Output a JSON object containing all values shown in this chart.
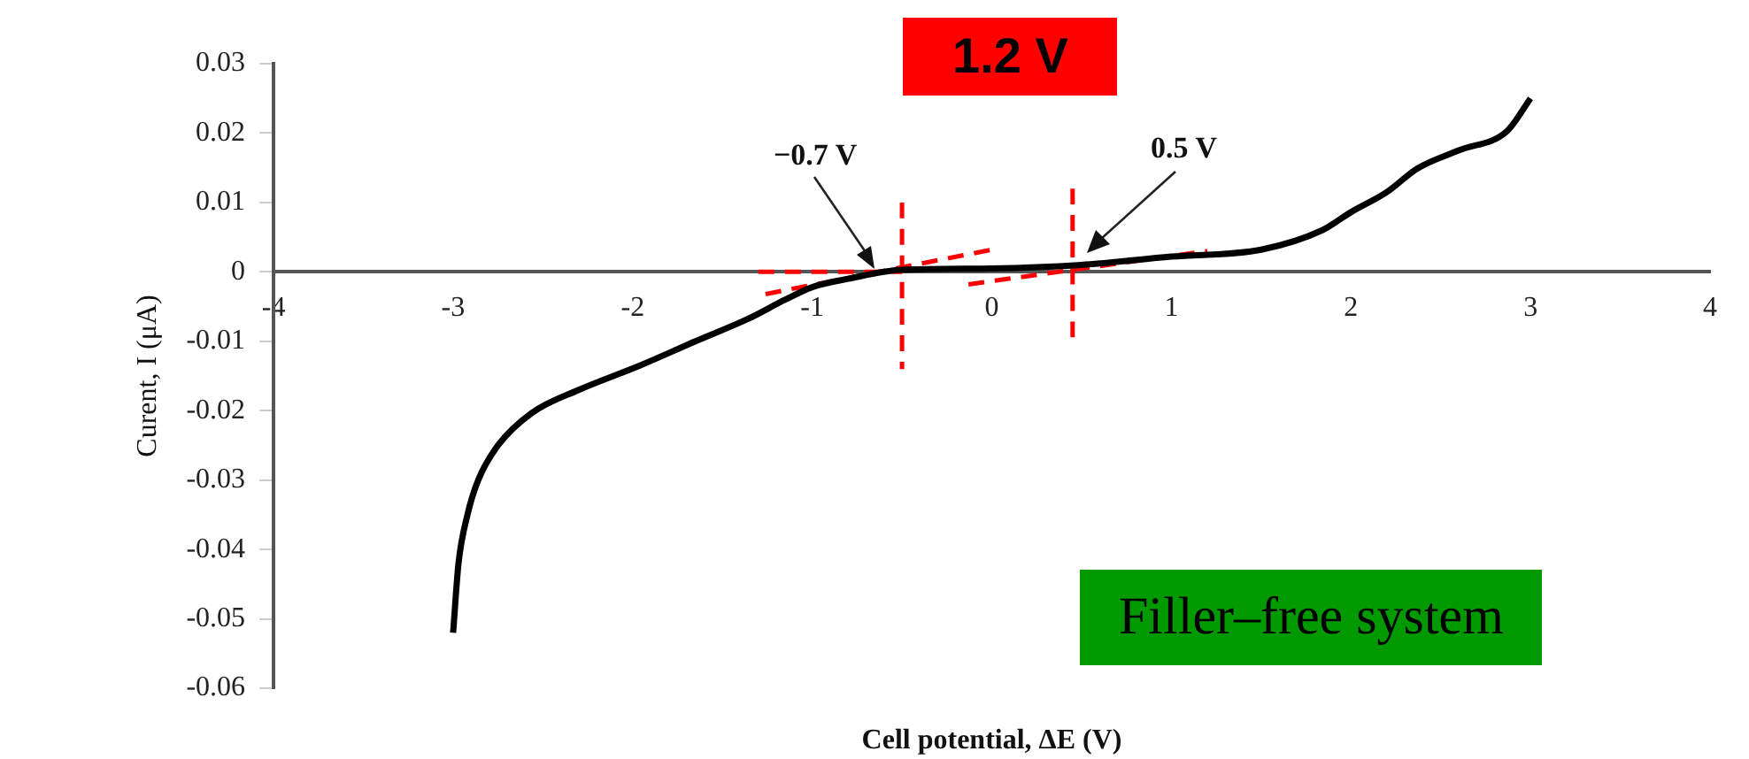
{
  "chart_data": {
    "type": "line",
    "xlabel": "Cell potential, ΔE (V)",
    "ylabel": "Curent, I (μA)",
    "xlim": [
      -4,
      4
    ],
    "xticks": [
      -4,
      -3,
      -2,
      -1,
      0,
      1,
      2,
      3,
      4
    ],
    "ylim": [
      -0.06,
      0.03
    ],
    "yticks": [
      -0.06,
      -0.05,
      -0.04,
      -0.03,
      -0.02,
      -0.01,
      0,
      0.01,
      0.02,
      0.03
    ],
    "grid": false,
    "legend": false,
    "marker": "none",
    "series": [
      {
        "color": "#000000",
        "line_style": "solid",
        "x": [
          -3,
          -2.97,
          -2.92,
          -2.86,
          -2.75,
          -2.56,
          -2.3,
          -1.96,
          -1.65,
          -1.36,
          -1.15,
          -1,
          -0.8,
          -0.5,
          0,
          0.5,
          1,
          1.5,
          1.84,
          2,
          2.2,
          2.37,
          2.6,
          2.87,
          3
        ],
        "values": [
          -0.052,
          -0.042,
          -0.035,
          -0.03,
          -0.025,
          -0.0203,
          -0.017,
          -0.0135,
          -0.01,
          -0.0068,
          -0.004,
          -0.0022,
          -0.001,
          0.0003,
          0.0005,
          0.001,
          0.0022,
          0.0032,
          0.006,
          0.0086,
          0.0115,
          0.0149,
          0.0175,
          0.0203,
          0.025
        ]
      },
      {
        "color": "#ff0000",
        "line_style": "dashed",
        "x": [
          -0.5,
          -0.5
        ],
        "values": [
          0.01,
          -0.014
        ]
      },
      {
        "color": "#ff0000",
        "line_style": "dashed",
        "x": [
          0.45,
          0.45
        ],
        "values": [
          0.012,
          -0.01
        ]
      },
      {
        "color": "#ff0000",
        "line_style": "dashed",
        "x": [
          -1.26,
          0
        ],
        "values": [
          -0.0032,
          0.0032
        ]
      },
      {
        "color": "#ff0000",
        "line_style": "dashed",
        "x": [
          -1.3,
          -0.5
        ],
        "values": [
          0,
          0
        ]
      },
      {
        "color": "#ff0000",
        "line_style": "dashed",
        "x": [
          -0.13,
          1.2
        ],
        "values": [
          -0.0018,
          0.003
        ]
      }
    ],
    "annotations": [
      "−0.7 V",
      "0.5 V",
      "1.2 V",
      "Filler–free system"
    ]
  }
}
